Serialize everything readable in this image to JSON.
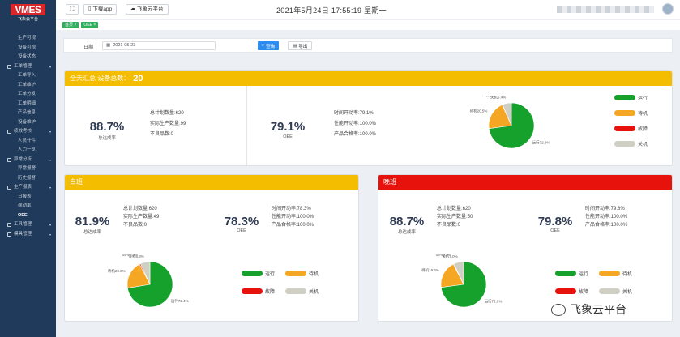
{
  "sidebar": {
    "logo": "VMES",
    "logo_sub": "飞象云平台",
    "items": [
      {
        "label": "生产可视",
        "type": "sub"
      },
      {
        "label": "设备可视",
        "type": "sub"
      },
      {
        "label": "设备状态",
        "type": "sub"
      },
      {
        "label": "工单管理",
        "type": "group"
      },
      {
        "label": "工单导入",
        "type": "sub"
      },
      {
        "label": "工单维护",
        "type": "sub"
      },
      {
        "label": "工单分发",
        "type": "sub"
      },
      {
        "label": "工单明细",
        "type": "sub"
      },
      {
        "label": "产品信息",
        "type": "sub"
      },
      {
        "label": "设备维护",
        "type": "sub"
      },
      {
        "label": "绩效考核",
        "type": "group"
      },
      {
        "label": "人员计件",
        "type": "sub"
      },
      {
        "label": "人力一览",
        "type": "sub"
      },
      {
        "label": "异常分析",
        "type": "group"
      },
      {
        "label": "异常报警",
        "type": "sub"
      },
      {
        "label": "历史报警",
        "type": "sub"
      },
      {
        "label": "生产报表",
        "type": "group"
      },
      {
        "label": "日报表",
        "type": "sub"
      },
      {
        "label": "稼动率",
        "type": "sub"
      },
      {
        "label": "OEE",
        "type": "sub",
        "active": true
      },
      {
        "label": "工具管理",
        "type": "group"
      },
      {
        "label": "模具管理",
        "type": "group"
      }
    ]
  },
  "header": {
    "download_app": "下载app",
    "cloud_platform": "飞象云平台",
    "datetime": "2021年5月24日  17:55:19  星期一"
  },
  "tags": [
    "首页",
    "OEE"
  ],
  "filter": {
    "date_label": "日期",
    "date_value": "2021-05-23",
    "query_label": "查询",
    "export_label": "导出"
  },
  "summary_panel": {
    "title": "全天汇总  设备总数：",
    "device_count": "20",
    "achievement_rate": "88.7%",
    "achievement_label": "总达成率",
    "planned_qty": "总计划数量:620",
    "actual_qty": "实际生产数量:99",
    "defect_qty": "不良品数:0",
    "oee": "79.1%",
    "oee_label": "OEE",
    "time_util": "时间开动率:79.1%",
    "perf_util": "性能开动率:100.0%",
    "quality_rate": "产品合格率:100.0%",
    "legend": {
      "run": "运行",
      "wait": "待机",
      "fault": "故障",
      "off": "关机"
    }
  },
  "day_panel": {
    "title": "白班",
    "achievement_rate": "81.9%",
    "achievement_label": "总达成率",
    "planned_qty": "总计划数量:620",
    "actual_qty": "实际生产数量:49",
    "defect_qty": "不良品数:0",
    "oee": "78.3%",
    "oee_label": "OEE",
    "time_util": "时间开动率:78.3%",
    "perf_util": "性能开动率:100.0%",
    "quality_rate": "产品合格率:100.0%",
    "legend": {
      "run": "运行",
      "wait": "待机",
      "fault": "故障",
      "off": "关机"
    }
  },
  "night_panel": {
    "title": "晚班",
    "achievement_rate": "88.7%",
    "achievement_label": "总达成率",
    "planned_qty": "总计划数量:620",
    "actual_qty": "实际生产数量:50",
    "defect_qty": "不良品数:0",
    "oee": "79.8%",
    "oee_label": "OEE",
    "time_util": "时间开动率:79.8%",
    "perf_util": "性能开动率:100.0%",
    "quality_rate": "产品合格率:100.0%",
    "legend": {
      "run": "运行",
      "wait": "待机",
      "fault": "故障",
      "off": "关机"
    }
  },
  "chart_data": [
    {
      "type": "pie",
      "name": "summary",
      "labels": [
        "运行",
        "待机",
        "故障",
        "关机"
      ],
      "values": [
        72.9,
        20.5,
        0.2,
        6.4
      ],
      "slice_labels": [
        "运行72.9%",
        "待机20.5%",
        "故障0.2%",
        "关机6.4%"
      ],
      "colors": [
        "#16a02c",
        "#f5a623",
        "#e8120c",
        "#cfcfc4"
      ]
    },
    {
      "type": "pie",
      "name": "day",
      "labels": [
        "运行",
        "待机",
        "故障",
        "关机"
      ],
      "values": [
        72.4,
        20.0,
        0.8,
        6.8
      ],
      "slice_labels": [
        "运行72.4%",
        "待机20.0%",
        "故障0.8%",
        "关机6.8%"
      ],
      "colors": [
        "#16a02c",
        "#f5a623",
        "#e8120c",
        "#cfcfc4"
      ]
    },
    {
      "type": "pie",
      "name": "night",
      "labels": [
        "运行",
        "待机",
        "故障",
        "关机"
      ],
      "values": [
        72.9,
        19.6,
        0.5,
        7.0
      ],
      "slice_labels": [
        "运行72.9%",
        "待机19.6%",
        "故障0.5%",
        "关机7.0%"
      ],
      "colors": [
        "#16a02c",
        "#f5a623",
        "#e8120c",
        "#cfcfc4"
      ]
    }
  ],
  "watermark": "飞象云平台"
}
